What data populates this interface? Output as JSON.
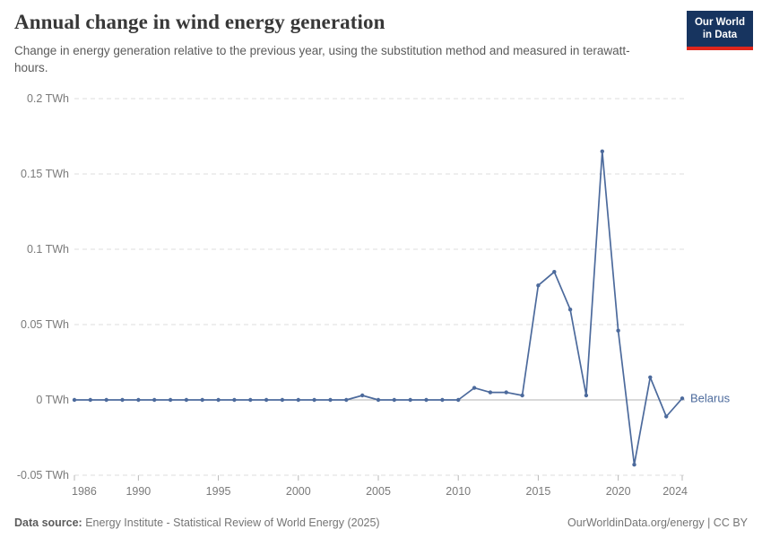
{
  "header": {
    "title": "Annual change in wind energy generation",
    "subtitle": "Change in energy generation relative to the previous year, using the substitution method and measured in terawatt-hours.",
    "logo": {
      "line1": "Our World",
      "line2": "in Data",
      "bg_color": "#17345F",
      "accent_color": "#E0261C"
    }
  },
  "footer": {
    "source_label": "Data source:",
    "source_text": " Energy Institute - Statistical Review of World Energy (2025)",
    "credit": "OurWorldinData.org/energy | CC BY"
  },
  "chart_data": {
    "type": "line",
    "title": "Annual change in wind energy generation",
    "unit": "TWh",
    "xlim": [
      1986,
      2024
    ],
    "ylim": [
      -0.05,
      0.2
    ],
    "grid": "horizontal-dashed",
    "legend_position": "end-of-line-label",
    "xticks": [
      1986,
      1990,
      1995,
      2000,
      2005,
      2010,
      2015,
      2020,
      2024
    ],
    "yticks": [
      -0.05,
      0,
      0.05,
      0.1,
      0.15,
      0.2
    ],
    "ytick_labels": [
      "-0.05 TWh",
      "0 TWh",
      "0.05 TWh",
      "0.1 TWh",
      "0.15 TWh",
      "0.2 TWh"
    ],
    "x": [
      1986,
      1987,
      1988,
      1989,
      1990,
      1991,
      1992,
      1993,
      1994,
      1995,
      1996,
      1997,
      1998,
      1999,
      2000,
      2001,
      2002,
      2003,
      2004,
      2005,
      2006,
      2007,
      2008,
      2009,
      2010,
      2011,
      2012,
      2013,
      2014,
      2015,
      2016,
      2017,
      2018,
      2019,
      2020,
      2021,
      2022,
      2023,
      2024
    ],
    "series": [
      {
        "name": "Belarus",
        "color": "#4C6A9C",
        "values": [
          0,
          0,
          0,
          0,
          0,
          0,
          0,
          0,
          0,
          0,
          0,
          0,
          0,
          0,
          0,
          0,
          0,
          0,
          0.003,
          0,
          0,
          0,
          0,
          0,
          0,
          0.008,
          0.005,
          0.005,
          0.003,
          0.076,
          0.085,
          0.06,
          0.003,
          0.165,
          0.046,
          -0.043,
          0.015,
          -0.011,
          0.001
        ]
      }
    ],
    "style": {
      "gridline_color": "#dcdcdc",
      "zero_line_color": "#b3b3b3",
      "tick_color": "#b8b8b8",
      "axis_text_color": "#7a7a7a"
    }
  }
}
